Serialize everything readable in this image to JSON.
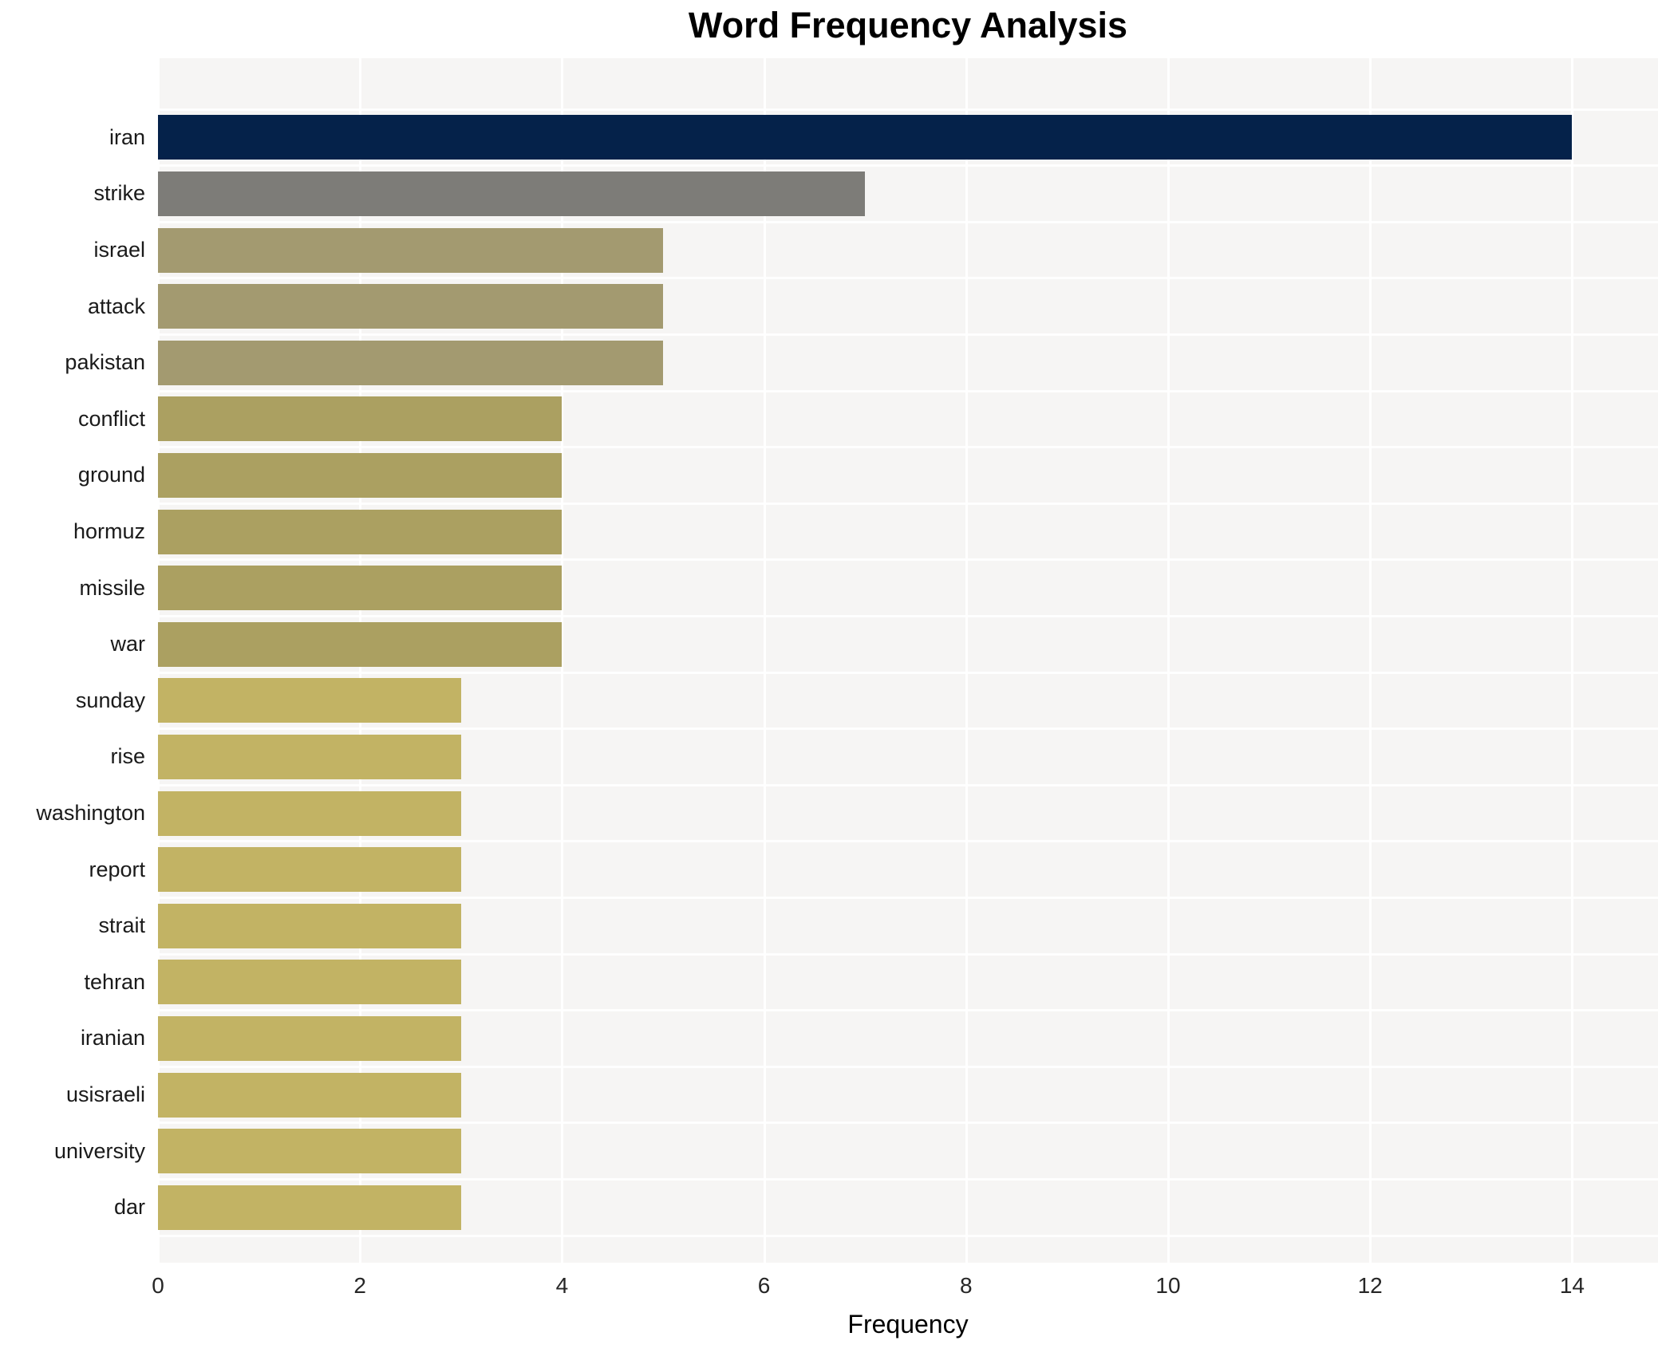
{
  "title": "Word Frequency Analysis",
  "axis": {
    "xlabel": "Frequency",
    "x_ticks": [
      "0",
      "2",
      "4",
      "6",
      "8",
      "10",
      "12",
      "14"
    ],
    "x_tick_values": [
      0,
      2,
      4,
      6,
      8,
      10,
      12,
      14
    ]
  },
  "colors": {
    "plot_background": "#f6f5f4",
    "grid_line": "#ffffff",
    "title_text": "#000000",
    "tick_text": "#262626",
    "label_text": "#1a1a1a"
  },
  "chart_data": {
    "type": "bar",
    "orientation": "horizontal",
    "title": "Word Frequency Analysis",
    "xlabel": "Frequency",
    "ylabel": "",
    "xlim": [
      0,
      14.85
    ],
    "grid": "white vertical gridlines at even ticks, thin white lines between bar rows",
    "legend": "none",
    "categories": [
      "iran",
      "strike",
      "israel",
      "attack",
      "pakistan",
      "conflict",
      "ground",
      "hormuz",
      "missile",
      "war",
      "sunday",
      "rise",
      "washington",
      "report",
      "strait",
      "tehran",
      "iranian",
      "usisraeli",
      "university",
      "dar"
    ],
    "values": [
      14,
      7,
      5,
      5,
      5,
      4,
      4,
      4,
      4,
      4,
      3,
      3,
      3,
      3,
      3,
      3,
      3,
      3,
      3,
      3
    ],
    "bar_colors": [
      "#05224a",
      "#7d7c78",
      "#a39a70",
      "#a39a70",
      "#a39a70",
      "#aba061",
      "#aba061",
      "#aba061",
      "#aba061",
      "#aba061",
      "#c2b364",
      "#c2b364",
      "#c2b364",
      "#c2b364",
      "#c2b364",
      "#c2b364",
      "#c2b364",
      "#c2b364",
      "#c2b364",
      "#c2b364"
    ]
  }
}
